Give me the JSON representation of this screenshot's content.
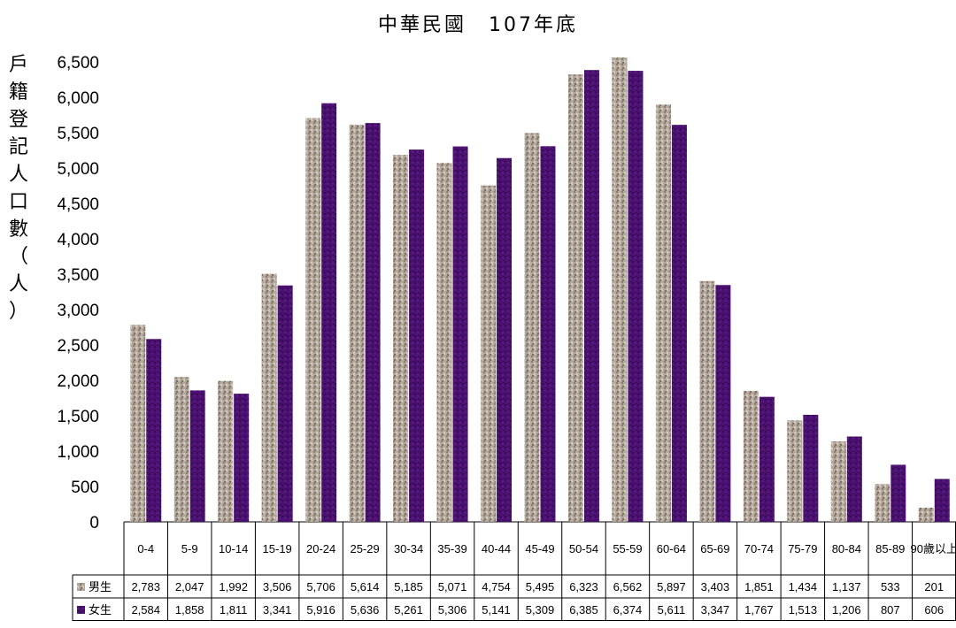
{
  "chart_data": {
    "type": "bar",
    "title": "中華民國　107年底",
    "ylabel": "戶籍登記人口數（人）",
    "ylim": [
      0,
      6500
    ],
    "yticks": [
      0,
      500,
      1000,
      1500,
      2000,
      2500,
      3000,
      3500,
      4000,
      4500,
      5000,
      5500,
      6000,
      6500
    ],
    "ytick_labels": [
      "0",
      "500",
      "1,000",
      "1,500",
      "2,000",
      "2,500",
      "3,000",
      "3,500",
      "4,000",
      "4,500",
      "5,000",
      "5,500",
      "6,000",
      "6,500"
    ],
    "categories": [
      "0-4",
      "5-9",
      "10-14",
      "15-19",
      "20-24",
      "25-29",
      "30-34",
      "35-39",
      "40-44",
      "45-49",
      "50-54",
      "55-59",
      "60-64",
      "65-69",
      "70-74",
      "75-79",
      "80-84",
      "85-89",
      "90歲以上"
    ],
    "series": [
      {
        "name": "男生",
        "color": "#a89c8e",
        "values": [
          2783,
          2047,
          1992,
          3506,
          5706,
          5614,
          5185,
          5071,
          4754,
          5495,
          6323,
          6562,
          5897,
          3403,
          1851,
          1434,
          1137,
          533,
          201
        ],
        "labels": [
          "2,783",
          "2,047",
          "1,992",
          "3,506",
          "5,706",
          "5,614",
          "5,185",
          "5,071",
          "4,754",
          "5,495",
          "6,323",
          "6,562",
          "5,897",
          "3,403",
          "1,851",
          "1,434",
          "1,137",
          "533",
          "201"
        ]
      },
      {
        "name": "女生",
        "color": "#4b1170",
        "values": [
          2584,
          1858,
          1811,
          3341,
          5916,
          5636,
          5261,
          5306,
          5141,
          5309,
          6385,
          6374,
          5611,
          3347,
          1767,
          1513,
          1206,
          807,
          606
        ],
        "labels": [
          "2,584",
          "1,858",
          "1,811",
          "3,341",
          "5,916",
          "5,636",
          "5,261",
          "5,306",
          "5,141",
          "5,309",
          "6,385",
          "6,374",
          "5,611",
          "3,347",
          "1,767",
          "1,513",
          "1,206",
          "807",
          "606"
        ]
      }
    ],
    "data_table": true,
    "grid": false
  }
}
